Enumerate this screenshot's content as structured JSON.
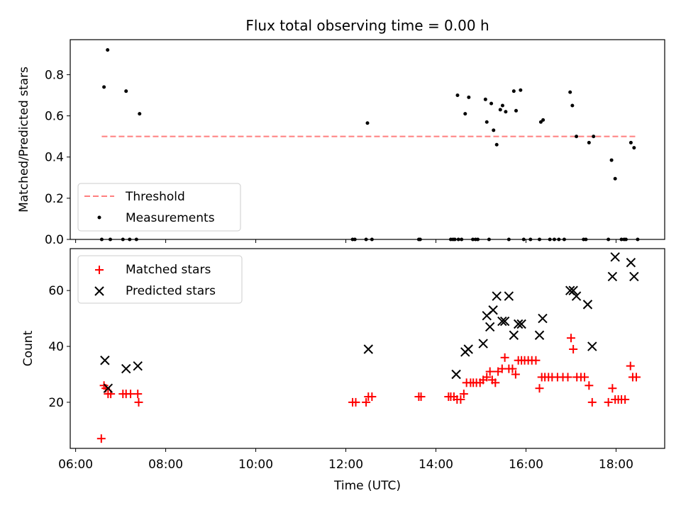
{
  "title": "Flux total observing time = 0.00 h",
  "colors": {
    "threshold": "#ff7f7f",
    "measurements": "#000000",
    "matched": "#ff0000",
    "predicted": "#000000"
  },
  "chart_data": [
    {
      "type": "scatter",
      "title": "Flux total observing time = 0.00 h",
      "xlabel": "",
      "ylabel": "Matched/Predicted stars",
      "xlim_hours": [
        5.88,
        19.08
      ],
      "ylim": [
        0,
        0.97
      ],
      "yticks": [
        0.0,
        0.2,
        0.4,
        0.6,
        0.8
      ],
      "ytick_labels": [
        "0.0",
        "0.2",
        "0.4",
        "0.6",
        "0.8"
      ],
      "grid": false,
      "legend_position": "lower-left",
      "legend": [
        "Threshold",
        "Measurements"
      ],
      "threshold": {
        "name": "Threshold",
        "y": 0.5,
        "x_range": [
          6.58,
          18.43
        ]
      },
      "measurements": {
        "name": "Measurements",
        "x": [
          6.58,
          6.63,
          6.71,
          6.77,
          7.05,
          7.12,
          7.2,
          7.35,
          7.42,
          12.15,
          12.2,
          12.45,
          12.48,
          12.58,
          13.62,
          13.65,
          14.33,
          14.38,
          14.42,
          14.48,
          14.5,
          14.57,
          14.65,
          14.73,
          14.82,
          14.88,
          14.93,
          15.1,
          15.13,
          15.18,
          15.23,
          15.28,
          15.35,
          15.43,
          15.48,
          15.55,
          15.62,
          15.73,
          15.78,
          15.88,
          15.95,
          16.1,
          16.3,
          16.33,
          16.38,
          16.53,
          16.63,
          16.73,
          16.85,
          16.98,
          17.03,
          17.12,
          17.28,
          17.33,
          17.4,
          17.5,
          17.83,
          17.9,
          17.98,
          18.12,
          18.18,
          18.22,
          18.33,
          18.4,
          18.48
        ],
        "y": [
          0.0,
          0.74,
          0.92,
          0.0,
          0.0,
          0.72,
          0.0,
          0.0,
          0.61,
          0.0,
          0.0,
          0.0,
          0.565,
          0.0,
          0.0,
          0.0,
          0.0,
          0.0,
          0.0,
          0.7,
          0.0,
          0.0,
          0.61,
          0.69,
          0.0,
          0.0,
          0.0,
          0.68,
          0.57,
          0.0,
          0.66,
          0.53,
          0.46,
          0.63,
          0.65,
          0.62,
          0.0,
          0.72,
          0.625,
          0.725,
          0.0,
          0.0,
          0.0,
          0.57,
          0.58,
          0.0,
          0.0,
          0.0,
          0.0,
          0.715,
          0.65,
          0.5,
          0.0,
          0.0,
          0.47,
          0.5,
          0.0,
          0.385,
          0.295,
          0.0,
          0.0,
          0.0,
          0.47,
          0.445,
          0.0
        ]
      }
    },
    {
      "type": "scatter",
      "title": "",
      "xlabel": "Time (UTC)",
      "ylabel": "Count",
      "xlim_hours": [
        5.88,
        19.08
      ],
      "xticks_hours": [
        6,
        8,
        10,
        12,
        14,
        16,
        18
      ],
      "xtick_labels": [
        "06:00",
        "08:00",
        "10:00",
        "12:00",
        "14:00",
        "16:00",
        "18:00"
      ],
      "ylim": [
        3.5,
        75
      ],
      "yticks": [
        20,
        40,
        60
      ],
      "ytick_labels": [
        "20",
        "40",
        "60"
      ],
      "grid": false,
      "legend_position": "upper-left",
      "legend": [
        "Matched stars",
        "Predicted stars"
      ],
      "series": [
        {
          "name": "Matched stars",
          "marker": "+",
          "x": [
            6.57,
            6.63,
            6.67,
            6.72,
            6.78,
            7.05,
            7.12,
            7.22,
            7.38,
            7.4,
            12.15,
            12.22,
            12.45,
            12.5,
            12.58,
            13.62,
            13.67,
            14.28,
            14.33,
            14.4,
            14.47,
            14.55,
            14.62,
            14.68,
            14.77,
            14.83,
            14.9,
            14.98,
            15.05,
            15.13,
            15.2,
            15.25,
            15.32,
            15.38,
            15.47,
            15.53,
            15.62,
            15.7,
            15.77,
            15.83,
            15.9,
            15.97,
            16.05,
            16.13,
            16.22,
            16.3,
            16.35,
            16.42,
            16.5,
            16.58,
            16.7,
            16.82,
            16.93,
            17.0,
            17.05,
            17.13,
            17.22,
            17.3,
            17.4,
            17.47,
            17.83,
            17.92,
            17.98,
            18.05,
            18.12,
            18.2,
            18.32,
            18.37,
            18.45
          ],
          "y": [
            7,
            26,
            25,
            23,
            23,
            23,
            23,
            23,
            23,
            20,
            20,
            20,
            20,
            22,
            22,
            22,
            22,
            22,
            22,
            22,
            21,
            21,
            23,
            27,
            27,
            27,
            27,
            27,
            28,
            29,
            31,
            28,
            27,
            31,
            32,
            36,
            32,
            32,
            30,
            35,
            35,
            35,
            35,
            35,
            35,
            25,
            29,
            29,
            29,
            29,
            29,
            29,
            29,
            43,
            39,
            29,
            29,
            29,
            26,
            20,
            20,
            25,
            21,
            21,
            21,
            21,
            33,
            29,
            29
          ]
        },
        {
          "name": "Predicted stars",
          "marker": "x",
          "x": [
            6.65,
            6.72,
            7.12,
            7.38,
            12.5,
            14.45,
            14.65,
            14.72,
            15.05,
            15.13,
            15.2,
            15.27,
            15.35,
            15.47,
            15.53,
            15.62,
            15.73,
            15.83,
            15.9,
            16.3,
            16.37,
            16.98,
            17.05,
            17.12,
            17.37,
            17.47,
            17.92,
            17.98,
            18.33,
            18.4
          ],
          "y": [
            35,
            25,
            32,
            33,
            39,
            30,
            38,
            39,
            41,
            51,
            47,
            53,
            58,
            49,
            49,
            58,
            44,
            48,
            48,
            44,
            50,
            60,
            60,
            58,
            55,
            40,
            65,
            72,
            70,
            65
          ]
        }
      ]
    }
  ]
}
